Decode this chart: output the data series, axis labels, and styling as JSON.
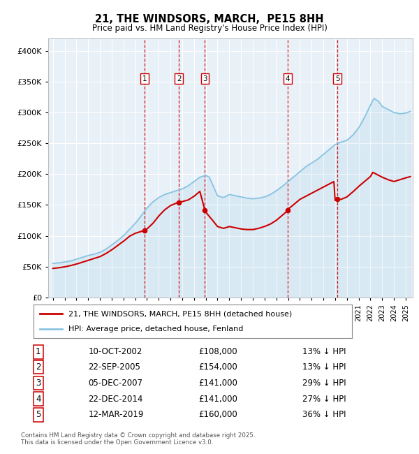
{
  "title": "21, THE WINDSORS, MARCH,  PE15 8HH",
  "subtitle": "Price paid vs. HM Land Registry's House Price Index (HPI)",
  "footer": "Contains HM Land Registry data © Crown copyright and database right 2025.\nThis data is licensed under the Open Government Licence v3.0.",
  "legend_line1": "21, THE WINDSORS, MARCH, PE15 8HH (detached house)",
  "legend_line2": "HPI: Average price, detached house, Fenland",
  "hpi_color": "#89c4e1",
  "price_color": "#cc0000",
  "plot_bg": "#e8f0f8",
  "dashed_color": "#cc0000",
  "transactions": [
    {
      "num": 1,
      "date": "10-OCT-2002",
      "price": 108000,
      "pct": "13%",
      "x_year": 2002.78
    },
    {
      "num": 2,
      "date": "22-SEP-2005",
      "price": 154000,
      "pct": "13%",
      "x_year": 2005.73
    },
    {
      "num": 3,
      "date": "05-DEC-2007",
      "price": 141000,
      "pct": "29%",
      "x_year": 2007.93
    },
    {
      "num": 4,
      "date": "22-DEC-2014",
      "price": 141000,
      "pct": "27%",
      "x_year": 2014.98
    },
    {
      "num": 5,
      "date": "12-MAR-2019",
      "price": 160000,
      "pct": "36%",
      "x_year": 2019.19
    }
  ],
  "table_rows": [
    [
      "1",
      "10-OCT-2002",
      "£108,000",
      "13% ↓ HPI"
    ],
    [
      "2",
      "22-SEP-2005",
      "£154,000",
      "13% ↓ HPI"
    ],
    [
      "3",
      "05-DEC-2007",
      "£141,000",
      "29% ↓ HPI"
    ],
    [
      "4",
      "22-DEC-2014",
      "£141,000",
      "27% ↓ HPI"
    ],
    [
      "5",
      "12-MAR-2019",
      "£160,000",
      "36% ↓ HPI"
    ]
  ],
  "ylim": [
    0,
    420000
  ],
  "xlim_start": 1994.6,
  "xlim_end": 2025.6,
  "yticks": [
    0,
    50000,
    100000,
    150000,
    200000,
    250000,
    300000,
    350000,
    400000
  ],
  "ytick_labels": [
    "£0",
    "£50K",
    "£100K",
    "£150K",
    "£200K",
    "£250K",
    "£300K",
    "£350K",
    "£400K"
  ]
}
